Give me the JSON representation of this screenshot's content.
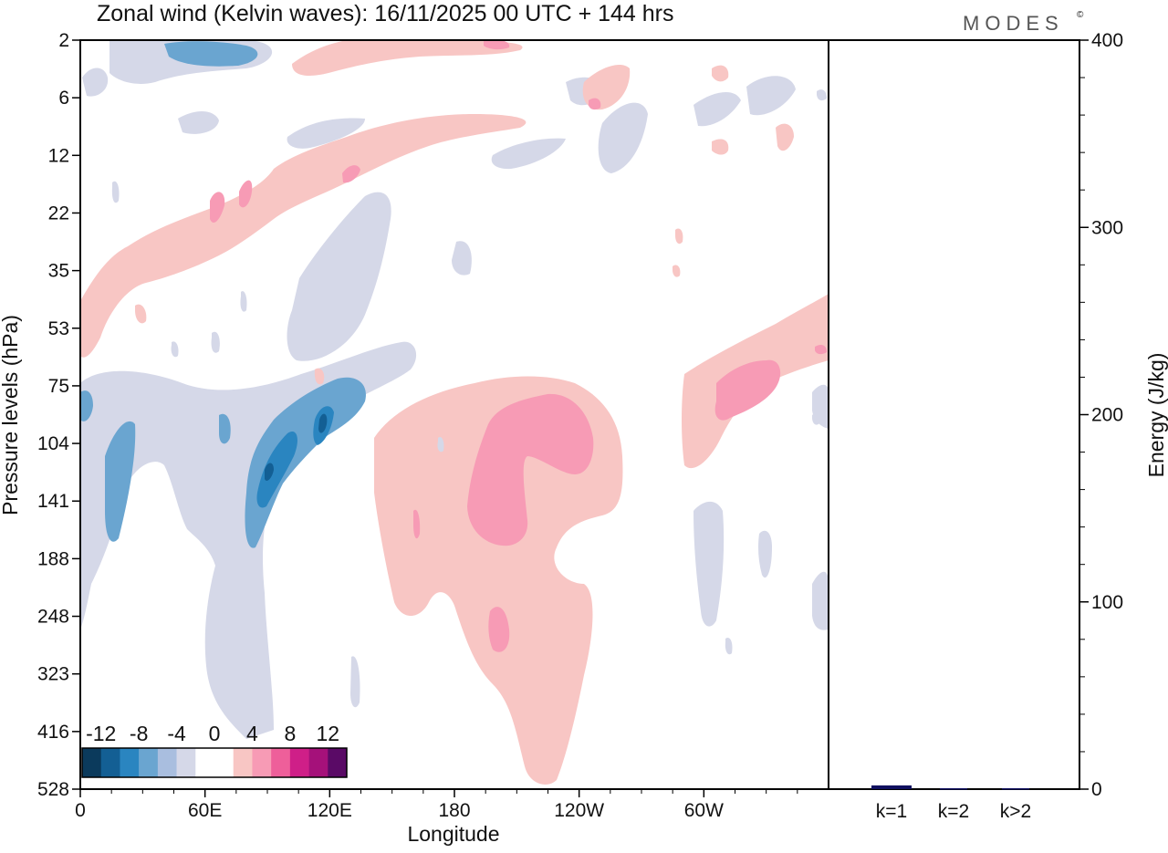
{
  "header": {
    "title": "Zonal wind (Kelvin waves):  16/11/2025  00 UTC  + 144 hrs",
    "brand": "MODES",
    "brand_mark": "©"
  },
  "chart_data": [
    {
      "type": "heatmap",
      "title": "Zonal wind (Kelvin waves):  16/11/2025  00 UTC  + 144 hrs",
      "xlabel": "Longitude",
      "ylabel": "Pressure levels (hPa)",
      "x_ticks": [
        "0",
        "60E",
        "120E",
        "180",
        "120W",
        "60W"
      ],
      "x_tick_values": [
        0,
        60,
        120,
        180,
        240,
        300
      ],
      "xlim": [
        0,
        360
      ],
      "y_ticks": [
        "2",
        "6",
        "12",
        "22",
        "35",
        "53",
        "75",
        "104",
        "141",
        "188",
        "248",
        "323",
        "416",
        "528"
      ],
      "grid": false,
      "colorbar": {
        "position": "bottom-left",
        "labels": [
          "-12",
          "-8",
          "-4",
          "0",
          "4",
          "8",
          "12"
        ],
        "label_values": [
          -12,
          -8,
          -4,
          0,
          4,
          8,
          12
        ],
        "colors": [
          "#0b3a5c",
          "#135f94",
          "#2a85c0",
          "#6aa5d0",
          "#a9bedf",
          "#d5d8e8",
          "#ffffff",
          "#ffffff",
          "#f8c6c4",
          "#f79bb5",
          "#ee5f9a",
          "#cf1f88",
          "#a5117a",
          "#5a0a66"
        ]
      },
      "regions": [
        {
          "sign": "negative",
          "value": -12,
          "lon": 91,
          "level": "130"
        },
        {
          "sign": "negative",
          "value": -12,
          "lon": 116,
          "level": "100"
        },
        {
          "sign": "negative",
          "value": -8,
          "lon": 95,
          "level": "118"
        },
        {
          "sign": "negative",
          "value": -4,
          "lon": 16,
          "level": "150"
        },
        {
          "sign": "negative",
          "value": -4,
          "lon": 45,
          "level": "2"
        },
        {
          "sign": "positive",
          "value": 4,
          "lon": 200,
          "level": "150"
        },
        {
          "sign": "positive",
          "value": 4,
          "lon": 317,
          "level": "85"
        },
        {
          "sign": "positive",
          "value": 4,
          "lon": 40,
          "level": "22"
        }
      ]
    },
    {
      "type": "bar",
      "ylabel": "Energy (J/kg)",
      "ylim": [
        0,
        400
      ],
      "y_ticks": [
        "0",
        "100",
        "200",
        "300",
        "400"
      ],
      "categories": [
        "k=1",
        "k=2",
        "k>2"
      ],
      "values": [
        2,
        0.5,
        0.5
      ],
      "bar_color": "#101060"
    }
  ]
}
